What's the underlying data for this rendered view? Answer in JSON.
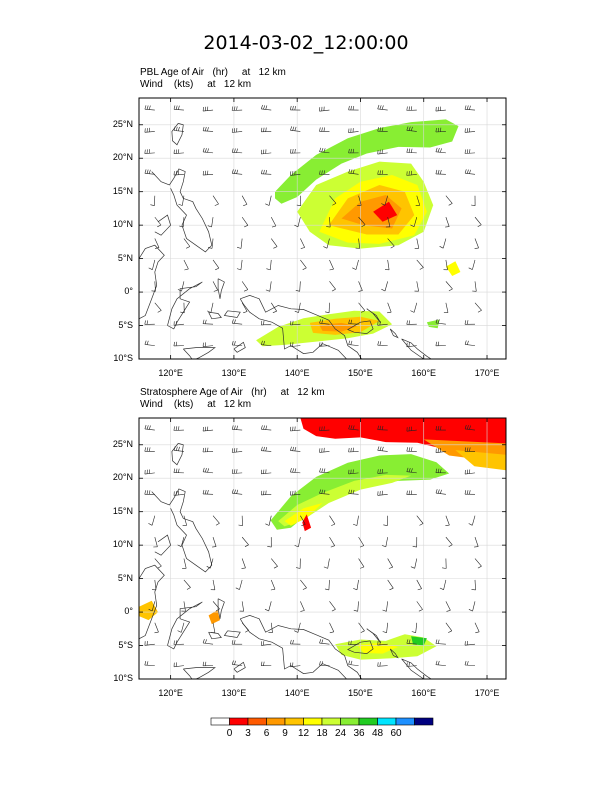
{
  "title": "2014-03-02_12:00:00",
  "colors": {
    "red": "#ff0000",
    "orange_red": "#ff5a00",
    "orange": "#ff9900",
    "gold": "#ffc400",
    "yellow": "#ffff00",
    "yellow_green": "#ccff33",
    "lime": "#88ee33",
    "green": "#22cc22",
    "cyan": "#00e5ff",
    "blue": "#1e90ff",
    "navy": "#000080",
    "coast": "#333333",
    "grid": "#d8d8d8"
  },
  "chart_data": [
    {
      "type": "heatmap",
      "field": "PBL Age of Air",
      "units": "hr",
      "level": "12 km",
      "title_line1": "PBL Age of Air   (hr)     at   12 km",
      "title_line2": "Wind    (kts)     at   12 km",
      "xlim": [
        115,
        173
      ],
      "ylim": [
        -10,
        29
      ],
      "xticks": [
        120,
        130,
        140,
        150,
        160,
        170
      ],
      "yticks": [
        -10,
        -5,
        0,
        5,
        10,
        15,
        20,
        25
      ],
      "xticklabels": [
        "120°E",
        "130°E",
        "140°E",
        "150°E",
        "160°E",
        "170°E"
      ],
      "yticklabels": [
        "10°S",
        "5°S",
        "0°",
        "5°N",
        "10°N",
        "15°N",
        "20°N",
        "25°N"
      ],
      "features": [
        {
          "name": "plume-arc",
          "lon": [
            138,
            142,
            148,
            154,
            160,
            164,
            165
          ],
          "lat": [
            15,
            19,
            22,
            24,
            25,
            23,
            22
          ],
          "approx_age_hr": 21
        },
        {
          "name": "core",
          "lon": [
            145,
            162
          ],
          "lat": [
            6,
            18
          ],
          "approx_age_hr": 6
        },
        {
          "name": "southern-band",
          "lon": [
            134,
            154
          ],
          "lat": [
            -8,
            -3
          ],
          "approx_age_hr": 9
        }
      ]
    },
    {
      "type": "heatmap",
      "field": "Stratosphere Age of Air",
      "units": "hr",
      "level": "12 km",
      "title_line1": "Stratosphere Age of Air   (hr)     at   12 km",
      "title_line2": "Wind    (kts)     at   12 km",
      "xlim": [
        115,
        173
      ],
      "ylim": [
        -10,
        29
      ],
      "xticks": [
        120,
        130,
        140,
        150,
        160,
        170
      ],
      "yticks": [
        -10,
        -5,
        0,
        5,
        10,
        15,
        20,
        25
      ],
      "xticklabels": [
        "120°E",
        "130°E",
        "140°E",
        "150°E",
        "160°E",
        "170°E"
      ],
      "yticklabels": [
        "10°S",
        "5°S",
        "0°",
        "5°N",
        "10°N",
        "15°N",
        "20°N",
        "25°N"
      ],
      "features": [
        {
          "name": "northern-intrusion",
          "lon": [
            140,
            173
          ],
          "lat": [
            25,
            29
          ],
          "approx_age_hr": 1
        },
        {
          "name": "plume-arc",
          "lon": [
            136,
            142,
            148,
            154,
            160,
            165
          ],
          "lat": [
            14,
            18,
            21,
            23,
            22,
            21
          ],
          "approx_age_hr": 18
        },
        {
          "name": "southern-patches",
          "lon": [
            145,
            162
          ],
          "lat": [
            -7,
            -3
          ],
          "approx_age_hr": 12
        }
      ]
    }
  ],
  "colorbar": {
    "labels": [
      "0",
      "3",
      "6",
      "9",
      "12",
      "18",
      "24",
      "36",
      "48",
      "60"
    ],
    "colors": [
      "#ffffff",
      "#ff0000",
      "#ff5a00",
      "#ff9900",
      "#ffc400",
      "#ffff00",
      "#ccff33",
      "#88ee33",
      "#22cc22",
      "#00e5ff",
      "#1e90ff",
      "#000080"
    ]
  }
}
